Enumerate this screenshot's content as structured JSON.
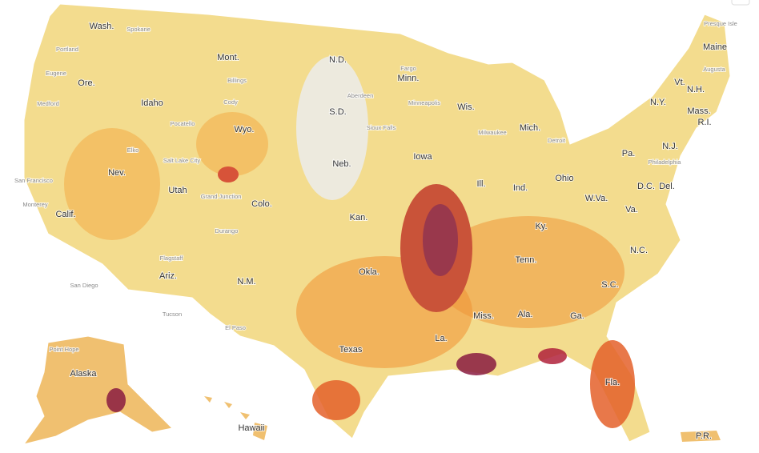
{
  "state_labels": [
    "Wash.",
    "Ore.",
    "Calif.",
    "Idaho",
    "Nev.",
    "Utah",
    "Ariz.",
    "Mont.",
    "Wyo.",
    "Colo.",
    "N.M.",
    "N.D.",
    "S.D.",
    "Neb.",
    "Kan.",
    "Okla.",
    "Texas",
    "Minn.",
    "Iowa",
    "Wis.",
    "Ill.",
    "Mich.",
    "Ind.",
    "Ohio",
    "Ky.",
    "Tenn.",
    "Miss.",
    "Ala.",
    "Ga.",
    "Fla.",
    "S.C.",
    "N.C.",
    "Va.",
    "W.Va.",
    "Pa.",
    "N.Y.",
    "Maine",
    "Vt.",
    "N.H.",
    "Mass.",
    "R.I.",
    "N.J.",
    "D.C.",
    "Del.",
    "La.",
    "Alaska",
    "Hawaii",
    "P.R."
  ],
  "city_labels": [
    "Spokane",
    "Portland",
    "Eugene",
    "Medford",
    "San Francisco",
    "Monterey",
    "San Diego",
    "Tucson",
    "Flagstaff",
    "Billings",
    "Cody",
    "Pocatello",
    "Elko",
    "Salt Lake City",
    "Grand Junction",
    "Durango",
    "Fargo",
    "Aberdeen",
    "Minneapolis",
    "Sioux Falls",
    "Milwaukee",
    "Detroit",
    "Philadelphia",
    "Augusta",
    "El Paso",
    "Point Hope",
    "Presque Isle"
  ]
}
